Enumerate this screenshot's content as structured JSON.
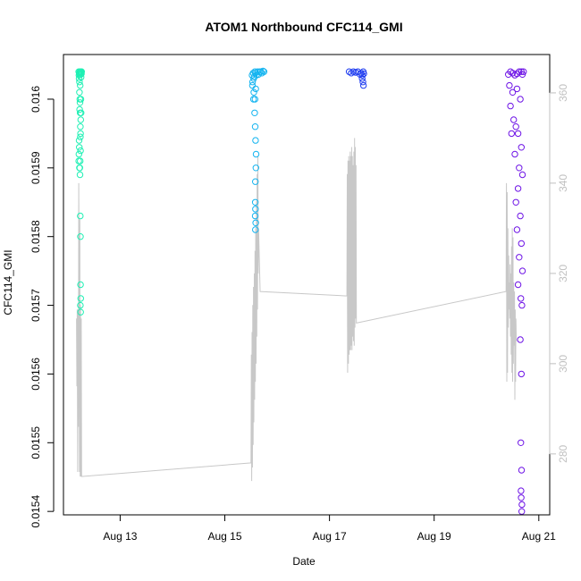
{
  "chart_data": {
    "type": "scatter",
    "title": "ATOM1 Northbound CFC114_GMI",
    "xlabel": "Date",
    "ylabel": "CFC114_GMI",
    "y2label": "",
    "xlim": [
      "2024-08-11T22:00",
      "2024-08-21T05:00"
    ],
    "ylim": [
      0.015395,
      0.016065
    ],
    "y2lim": [
      266.5,
      368.5
    ],
    "x_ticks": [
      {
        "date": "2024-08-13",
        "label": "Aug 13"
      },
      {
        "date": "2024-08-15",
        "label": "Aug 15"
      },
      {
        "date": "2024-08-17",
        "label": "Aug 17"
      },
      {
        "date": "2024-08-19",
        "label": "Aug 19"
      },
      {
        "date": "2024-08-21",
        "label": "Aug 21"
      }
    ],
    "y_ticks": [
      0.0154,
      0.0155,
      0.0156,
      0.0157,
      0.0158,
      0.0159,
      0.016
    ],
    "y2_ticks": [
      280,
      300,
      320,
      340,
      360
    ],
    "grid": false,
    "legend": "none",
    "colors": {
      "points_flight1": "#1ef0b4",
      "points_flight2": "#14b4f0",
      "points_flight3": "#1e3cf0",
      "points_flight4": "#6e14e6",
      "line": "#c8c8c8",
      "right_axis": "#c0c0c0",
      "axis": "#000000"
    },
    "series": [
      {
        "role": "points",
        "axis": "left",
        "color": "#1ef0b4",
        "points": [
          [
            "2024-08-12T05:00",
            0.01604
          ],
          [
            "2024-08-12T05:05",
            0.016035
          ],
          [
            "2024-08-12T05:10",
            0.01603
          ],
          [
            "2024-08-12T05:15",
            0.016038
          ],
          [
            "2024-08-12T05:20",
            0.016025
          ],
          [
            "2024-08-12T05:25",
            0.016036
          ],
          [
            "2024-08-12T05:30",
            0.01604
          ],
          [
            "2024-08-12T05:35",
            0.016038
          ],
          [
            "2024-08-12T05:40",
            0.01602
          ],
          [
            "2024-08-12T05:45",
            0.016039
          ],
          [
            "2024-08-12T05:50",
            0.01604
          ],
          [
            "2024-08-12T05:55",
            0.016036
          ],
          [
            "2024-08-12T06:00",
            0.01604
          ],
          [
            "2024-08-12T06:05",
            0.016032
          ],
          [
            "2024-08-12T06:10",
            0.01604
          ],
          [
            "2024-08-12T06:15",
            0.016037
          ],
          [
            "2024-08-12T06:20",
            0.01604
          ],
          [
            "2024-08-12T05:20",
            0.01601
          ],
          [
            "2024-08-12T05:30",
            0.016
          ],
          [
            "2024-08-12T05:40",
            0.01598
          ],
          [
            "2024-08-12T05:35",
            0.015995
          ],
          [
            "2024-08-12T05:25",
            0.015985
          ],
          [
            "2024-08-12T05:45",
            0.01596
          ],
          [
            "2024-08-12T05:50",
            0.01595
          ],
          [
            "2024-08-12T05:10",
            0.01594
          ],
          [
            "2024-08-12T05:15",
            0.01593
          ],
          [
            "2024-08-12T05:05",
            0.01592
          ],
          [
            "2024-08-12T05:00",
            0.01591
          ],
          [
            "2024-08-12T05:20",
            0.0159
          ],
          [
            "2024-08-12T06:00",
            0.016
          ],
          [
            "2024-08-12T05:35",
            0.01589
          ],
          [
            "2024-08-12T05:45",
            0.015945
          ],
          [
            "2024-08-12T05:55",
            0.01597
          ],
          [
            "2024-08-12T05:30",
            0.0159
          ],
          [
            "2024-08-12T05:40",
            0.01591
          ],
          [
            "2024-08-12T05:50",
            0.015925
          ],
          [
            "2024-08-12T06:05",
            0.01598
          ],
          [
            "2024-08-12T05:42",
            0.01583
          ],
          [
            "2024-08-12T05:48",
            0.0158
          ],
          [
            "2024-08-12T05:50",
            0.01573
          ],
          [
            "2024-08-12T05:55",
            0.01571
          ],
          [
            "2024-08-12T05:45",
            0.0157
          ],
          [
            "2024-08-12T05:52",
            0.01569
          ]
        ]
      },
      {
        "role": "points",
        "axis": "left",
        "color": "#14b4f0",
        "points": [
          [
            "2024-08-15T12:30",
            0.016035
          ],
          [
            "2024-08-15T12:45",
            0.016025
          ],
          [
            "2024-08-15T13:00",
            0.016038
          ],
          [
            "2024-08-15T13:15",
            0.01603
          ],
          [
            "2024-08-15T13:30",
            0.016033
          ],
          [
            "2024-08-15T13:45",
            0.01604
          ],
          [
            "2024-08-15T14:00",
            0.016038
          ],
          [
            "2024-08-15T14:30",
            0.016035
          ],
          [
            "2024-08-15T15:00",
            0.01604
          ],
          [
            "2024-08-15T15:30",
            0.016036
          ],
          [
            "2024-08-15T16:00",
            0.01604
          ],
          [
            "2024-08-15T16:30",
            0.01604
          ],
          [
            "2024-08-15T17:00",
            0.016038
          ],
          [
            "2024-08-15T17:30",
            0.016041
          ],
          [
            "2024-08-15T18:00",
            0.01604
          ],
          [
            "2024-08-15T12:40",
            0.01602
          ],
          [
            "2024-08-15T13:20",
            0.01601
          ],
          [
            "2024-08-15T14:10",
            0.016015
          ],
          [
            "2024-08-15T13:10",
            0.016
          ],
          [
            "2024-08-15T13:50",
            0.016
          ],
          [
            "2024-08-15T13:40",
            0.01598
          ],
          [
            "2024-08-15T13:55",
            0.01596
          ],
          [
            "2024-08-15T14:05",
            0.01594
          ],
          [
            "2024-08-15T14:20",
            0.01592
          ],
          [
            "2024-08-15T14:15",
            0.0159
          ],
          [
            "2024-08-15T14:00",
            0.01588
          ],
          [
            "2024-08-15T13:58",
            0.01585
          ],
          [
            "2024-08-15T14:02",
            0.01584
          ],
          [
            "2024-08-15T13:55",
            0.01583
          ],
          [
            "2024-08-15T14:10",
            0.01582
          ],
          [
            "2024-08-15T14:00",
            0.01581
          ]
        ]
      },
      {
        "role": "points",
        "axis": "left",
        "color": "#1e3cf0",
        "points": [
          [
            "2024-08-17T09:00",
            0.01604
          ],
          [
            "2024-08-17T10:00",
            0.016038
          ],
          [
            "2024-08-17T11:00",
            0.01604
          ],
          [
            "2024-08-17T12:00",
            0.016039
          ],
          [
            "2024-08-17T13:00",
            0.01604
          ],
          [
            "2024-08-17T14:00",
            0.016036
          ],
          [
            "2024-08-17T14:30",
            0.016038
          ],
          [
            "2024-08-17T15:00",
            0.016035
          ],
          [
            "2024-08-17T15:30",
            0.01604
          ],
          [
            "2024-08-17T15:45",
            0.016037
          ],
          [
            "2024-08-17T15:00",
            0.01603
          ],
          [
            "2024-08-17T15:20",
            0.016025
          ],
          [
            "2024-08-17T15:35",
            0.01602
          ]
        ]
      },
      {
        "role": "points",
        "axis": "left",
        "color": "#6e14e6",
        "points": [
          [
            "2024-08-20T10:00",
            0.016036
          ],
          [
            "2024-08-20T11:00",
            0.01604
          ],
          [
            "2024-08-20T12:00",
            0.016038
          ],
          [
            "2024-08-20T13:00",
            0.016035
          ],
          [
            "2024-08-20T14:00",
            0.016037
          ],
          [
            "2024-08-20T15:00",
            0.01604
          ],
          [
            "2024-08-20T16:00",
            0.01604
          ],
          [
            "2024-08-20T16:30",
            0.016036
          ],
          [
            "2024-08-20T17:00",
            0.01604
          ],
          [
            "2024-08-20T10:30",
            0.01602
          ],
          [
            "2024-08-20T12:00",
            0.01601
          ],
          [
            "2024-08-20T14:00",
            0.016015
          ],
          [
            "2024-08-20T15:30",
            0.016
          ],
          [
            "2024-08-20T11:00",
            0.01599
          ],
          [
            "2024-08-20T12:30",
            0.01597
          ],
          [
            "2024-08-20T13:30",
            0.01596
          ],
          [
            "2024-08-20T11:30",
            0.01595
          ],
          [
            "2024-08-20T14:30",
            0.01595
          ],
          [
            "2024-08-20T16:00",
            0.01593
          ],
          [
            "2024-08-20T13:00",
            0.01592
          ],
          [
            "2024-08-20T15:00",
            0.0159
          ],
          [
            "2024-08-20T16:30",
            0.01589
          ],
          [
            "2024-08-20T14:30",
            0.01587
          ],
          [
            "2024-08-20T13:30",
            0.01585
          ],
          [
            "2024-08-20T15:30",
            0.01583
          ],
          [
            "2024-08-20T14:00",
            0.01581
          ],
          [
            "2024-08-20T16:00",
            0.01579
          ],
          [
            "2024-08-20T15:00",
            0.01577
          ],
          [
            "2024-08-20T16:30",
            0.01575
          ],
          [
            "2024-08-20T14:30",
            0.01573
          ],
          [
            "2024-08-20T15:45",
            0.01571
          ],
          [
            "2024-08-20T16:15",
            0.0157
          ],
          [
            "2024-08-20T15:30",
            0.01565
          ],
          [
            "2024-08-20T16:00",
            0.0156
          ],
          [
            "2024-08-20T15:45",
            0.0155
          ],
          [
            "2024-08-20T16:05",
            0.01546
          ],
          [
            "2024-08-20T15:50",
            0.01543
          ],
          [
            "2024-08-20T16:10",
            0.0154
          ],
          [
            "2024-08-20T15:55",
            0.01542
          ],
          [
            "2024-08-20T16:15",
            0.01541
          ]
        ]
      },
      {
        "role": "line",
        "axis": "right",
        "color": "#c8c8c8",
        "points": [
          [
            "2024-08-12T04:00",
            310
          ],
          [
            "2024-08-12T04:10",
            295
          ],
          [
            "2024-08-12T04:20",
            312
          ],
          [
            "2024-08-12T04:30",
            276
          ],
          [
            "2024-08-12T04:40",
            312
          ],
          [
            "2024-08-12T04:50",
            286
          ],
          [
            "2024-08-12T05:00",
            340
          ],
          [
            "2024-08-12T05:10",
            312
          ],
          [
            "2024-08-12T05:20",
            276
          ],
          [
            "2024-08-12T05:30",
            332
          ],
          [
            "2024-08-12T05:40",
            275
          ],
          [
            "2024-08-12T05:50",
            313
          ],
          [
            "2024-08-12T06:00",
            275
          ],
          [
            "2024-08-12T06:10",
            310
          ],
          [
            "2024-08-12T06:20",
            275
          ],
          [
            "2024-08-15T12:00",
            278
          ],
          [
            "2024-08-15T12:10",
            302
          ],
          [
            "2024-08-15T12:20",
            274
          ],
          [
            "2024-08-15T12:30",
            307
          ],
          [
            "2024-08-15T12:40",
            277
          ],
          [
            "2024-08-15T12:50",
            313
          ],
          [
            "2024-08-15T13:00",
            282
          ],
          [
            "2024-08-15T13:10",
            317
          ],
          [
            "2024-08-15T13:20",
            287
          ],
          [
            "2024-08-15T13:30",
            320
          ],
          [
            "2024-08-15T13:40",
            292
          ],
          [
            "2024-08-15T13:50",
            325
          ],
          [
            "2024-08-15T14:00",
            296
          ],
          [
            "2024-08-15T14:10",
            330
          ],
          [
            "2024-08-15T14:20",
            300
          ],
          [
            "2024-08-15T14:30",
            336
          ],
          [
            "2024-08-15T14:40",
            306
          ],
          [
            "2024-08-15T14:50",
            342
          ],
          [
            "2024-08-15T15:00",
            312
          ],
          [
            "2024-08-15T15:10",
            346
          ],
          [
            "2024-08-15T15:20",
            320
          ],
          [
            "2024-08-15T15:30",
            330
          ],
          [
            "2024-08-15T16:10",
            316
          ],
          [
            "2024-08-17T08:00",
            315
          ],
          [
            "2024-08-17T08:10",
            342
          ],
          [
            "2024-08-17T08:20",
            298
          ],
          [
            "2024-08-17T08:30",
            345
          ],
          [
            "2024-08-17T08:40",
            300
          ],
          [
            "2024-08-17T08:50",
            346
          ],
          [
            "2024-08-17T09:00",
            302
          ],
          [
            "2024-08-17T09:10",
            345
          ],
          [
            "2024-08-17T09:20",
            303
          ],
          [
            "2024-08-17T09:30",
            347
          ],
          [
            "2024-08-17T09:40",
            303
          ],
          [
            "2024-08-17T09:50",
            346
          ],
          [
            "2024-08-17T10:00",
            304
          ],
          [
            "2024-08-17T10:10",
            348
          ],
          [
            "2024-08-17T10:20",
            303
          ],
          [
            "2024-08-17T10:30",
            346
          ],
          [
            "2024-08-17T10:40",
            306
          ],
          [
            "2024-08-17T10:50",
            344
          ],
          [
            "2024-08-17T11:00",
            305
          ],
          [
            "2024-08-17T11:10",
            347
          ],
          [
            "2024-08-17T11:20",
            304
          ],
          [
            "2024-08-17T11:30",
            350
          ],
          [
            "2024-08-17T11:40",
            308
          ],
          [
            "2024-08-17T11:50",
            348
          ],
          [
            "2024-08-17T12:00",
            310
          ],
          [
            "2024-08-17T12:10",
            344
          ],
          [
            "2024-08-17T12:20",
            309
          ],
          [
            "2024-08-20T09:00",
            316
          ],
          [
            "2024-08-20T09:10",
            340
          ],
          [
            "2024-08-20T09:20",
            296
          ],
          [
            "2024-08-20T09:30",
            338
          ],
          [
            "2024-08-20T09:40",
            298
          ],
          [
            "2024-08-20T09:50",
            330
          ],
          [
            "2024-08-20T10:00",
            308
          ],
          [
            "2024-08-20T10:10",
            324
          ],
          [
            "2024-08-20T10:20",
            312
          ],
          [
            "2024-08-20T10:30",
            318
          ],
          [
            "2024-08-20T10:40",
            310
          ],
          [
            "2024-08-20T10:50",
            322
          ],
          [
            "2024-08-20T11:00",
            306
          ],
          [
            "2024-08-20T11:10",
            320
          ],
          [
            "2024-08-20T11:20",
            302
          ],
          [
            "2024-08-20T11:30",
            326
          ],
          [
            "2024-08-20T11:40",
            298
          ],
          [
            "2024-08-20T11:50",
            330
          ],
          [
            "2024-08-20T12:00",
            296
          ],
          [
            "2024-08-20T12:10",
            328
          ],
          [
            "2024-08-20T12:20",
            300
          ],
          [
            "2024-08-20T12:30",
            318
          ],
          [
            "2024-08-20T12:40",
            304
          ],
          [
            "2024-08-20T12:50",
            316
          ],
          [
            "2024-08-20T13:00",
            292
          ],
          [
            "2024-08-20T13:10",
            312
          ],
          [
            "2024-08-20T13:20",
            296
          ],
          [
            "2024-08-20T13:30",
            310
          ],
          [
            "2024-08-20T13:40",
            305
          ]
        ]
      }
    ]
  }
}
